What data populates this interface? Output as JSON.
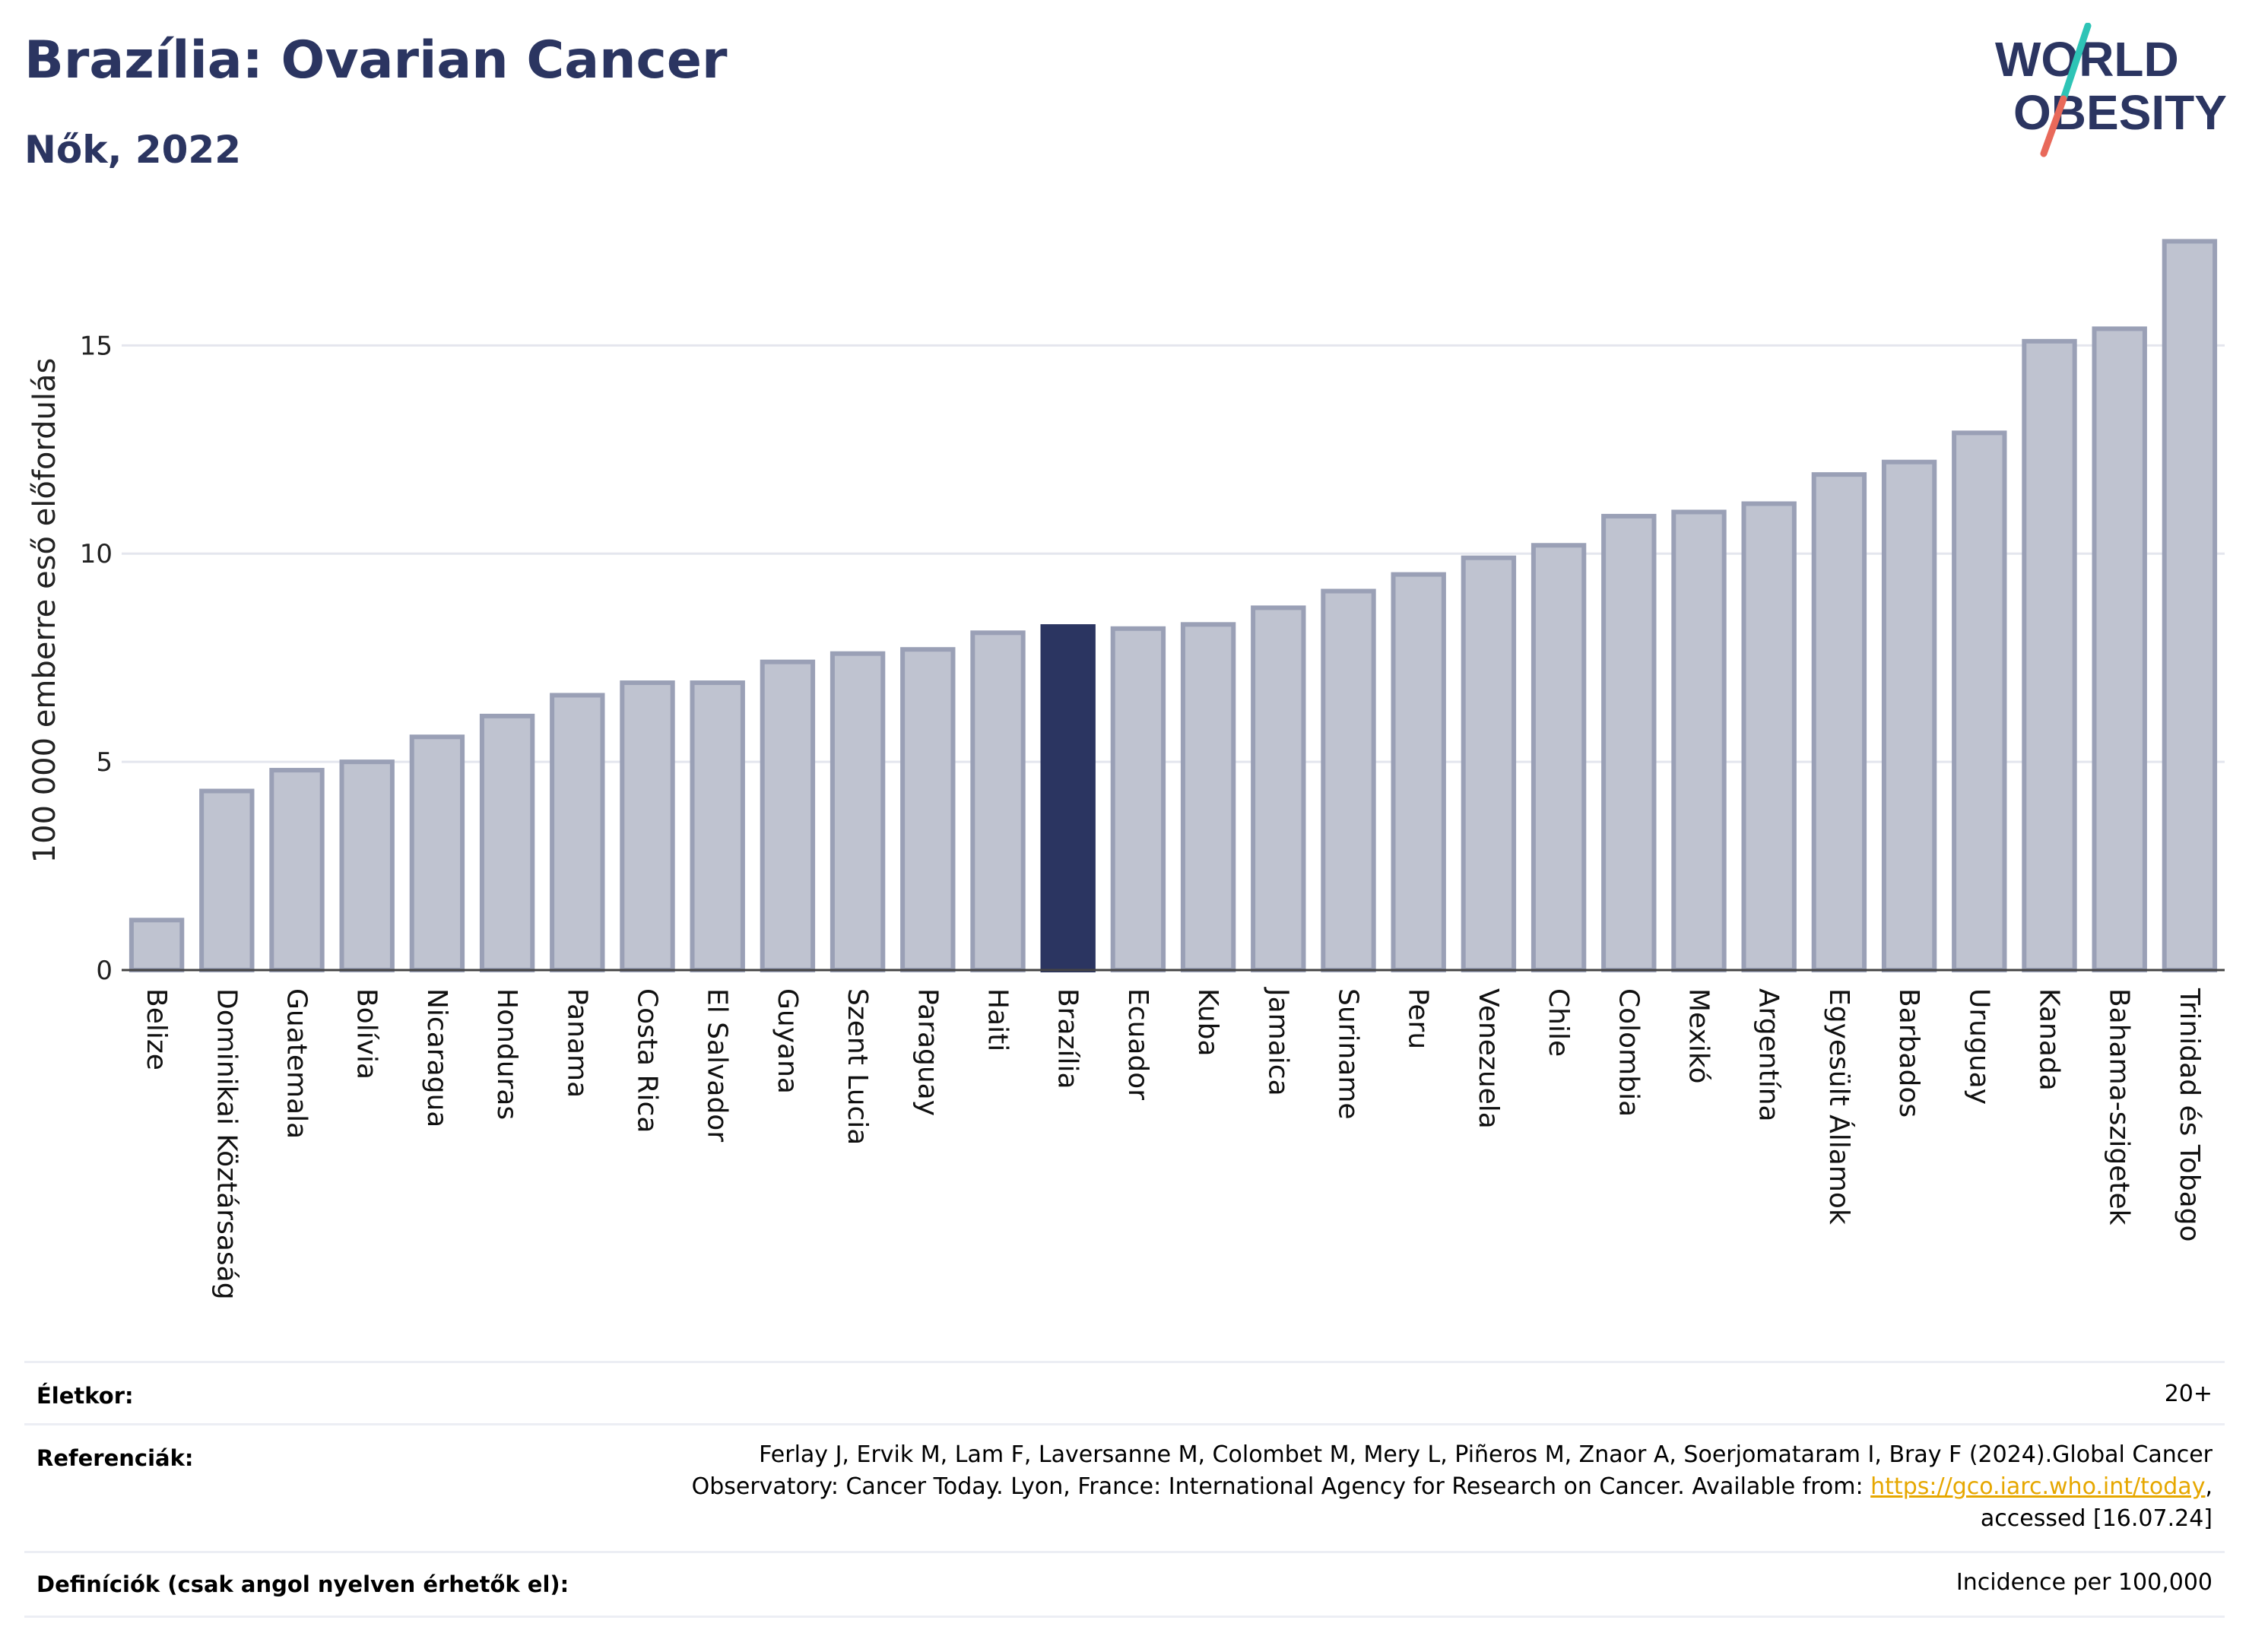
{
  "header": {
    "title": "Brazília: Ovarian Cancer",
    "subtitle": "Nők, 2022"
  },
  "logo": {
    "line1": "WORLD",
    "line2": "OBESITY",
    "text_color": "#2b3561",
    "slash_colors": [
      "#2ec4b6",
      "#e8695a"
    ]
  },
  "chart_data": {
    "type": "bar",
    "ylabel": "100 000 emberre eső előfordulás",
    "ylim": [
      0,
      18
    ],
    "yticks": [
      0,
      5,
      10,
      15
    ],
    "grid": true,
    "highlight": "Brazília",
    "colors": {
      "bar": "#bfc3d0",
      "bar_edge": "#9aa0b6",
      "highlight": "#2b3561",
      "axis": "#444444",
      "grid": "#e4e6ee"
    },
    "categories": [
      "Belize",
      "Dominikai Köztársaság",
      "Guatemala",
      "Bolívia",
      "Nicaragua",
      "Honduras",
      "Panama",
      "Costa Rica",
      "El Salvador",
      "Guyana",
      "Szent Lucia",
      "Paraguay",
      "Haiti",
      "Brazília",
      "Ecuador",
      "Kuba",
      "Jamaica",
      "Suriname",
      "Peru",
      "Venezuela",
      "Chile",
      "Colombia",
      "Mexikó",
      "Argentína",
      "Egyesült Államok",
      "Barbados",
      "Uruguay",
      "Kanada",
      "Bahama-szigetek",
      "Trinidad és Tobago"
    ],
    "values": [
      1.2,
      4.3,
      4.8,
      5.0,
      5.6,
      6.1,
      6.6,
      6.9,
      6.9,
      7.4,
      7.6,
      7.7,
      8.1,
      8.25,
      8.2,
      8.3,
      8.7,
      9.1,
      9.5,
      9.9,
      10.2,
      10.9,
      11.0,
      11.2,
      11.9,
      12.2,
      12.9,
      15.1,
      15.4,
      17.5
    ]
  },
  "info": {
    "age_label": "Életkor:",
    "age_value": "20+",
    "refs_label": "Referenciák:",
    "refs_line1": "Ferlay J, Ervik M, Lam F, Laversanne M, Colombet M, Mery L, Piñeros M, Znaor A, Soerjomataram I, Bray F (2024).Global Cancer",
    "refs_line2_pre": "Observatory: Cancer Today. Lyon, France: International Agency for Research on Cancer. Available from: ",
    "refs_link": "https://gco.iarc.who.int/today",
    "refs_line2_post": ",",
    "refs_line3": "accessed [16.07.24]",
    "defs_label": "Definíciók (csak angol nyelven érhetők el):",
    "defs_value": "Incidence per 100,000"
  }
}
